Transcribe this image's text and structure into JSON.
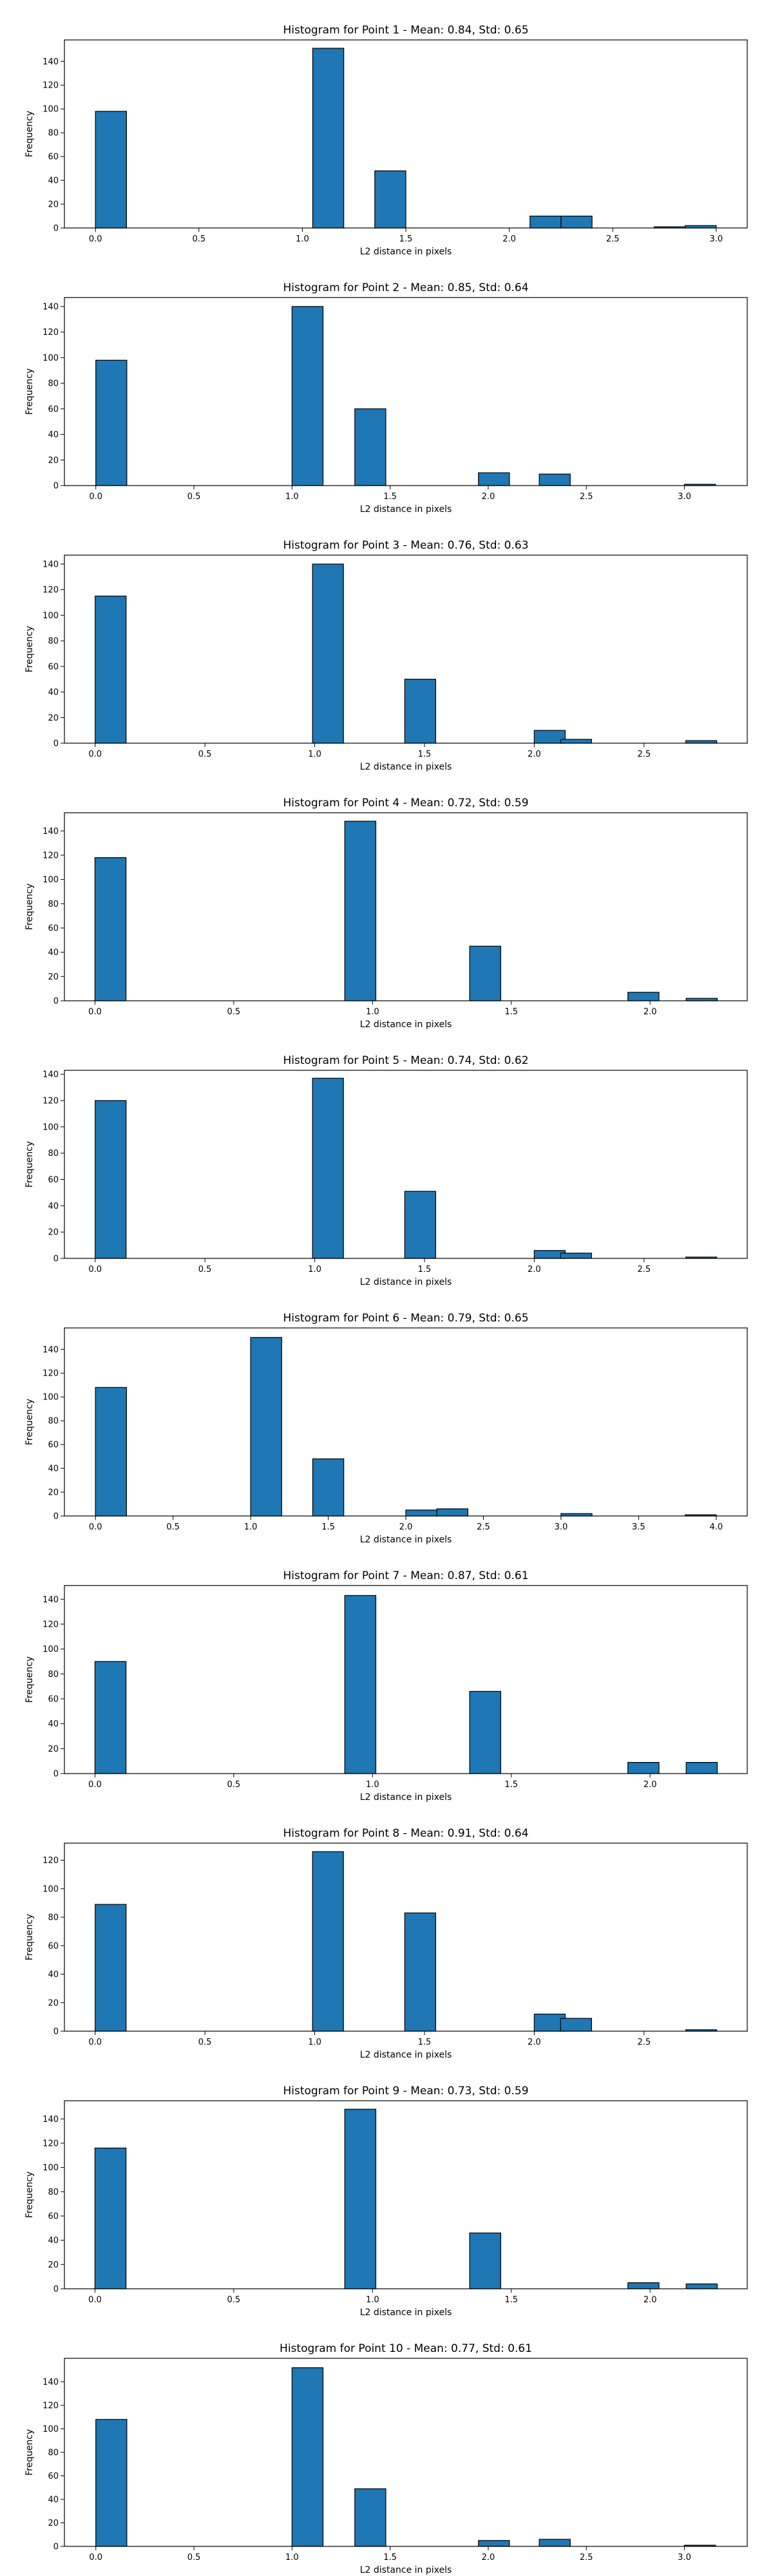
{
  "chart_data": [
    {
      "type": "bar",
      "title": "Histogram for Point 1 - Mean: 0.84, Std: 0.65",
      "xlabel": "L2 distance in pixels",
      "ylabel": "Frequency",
      "xlim": [
        -0.15,
        3.15
      ],
      "ylim": [
        0,
        158
      ],
      "xticks": [
        0,
        0.5,
        1.0,
        1.5,
        2.0,
        2.5,
        3.0
      ],
      "yticks": [
        0,
        20,
        40,
        60,
        80,
        100,
        120,
        140
      ],
      "xtick_labels": [
        "0.0",
        "0.5",
        "1.0",
        "1.5",
        "2.0",
        "2.5",
        "3.0"
      ],
      "ytick_labels": [
        "0",
        "20",
        "40",
        "60",
        "80",
        "100",
        "120",
        "140"
      ],
      "bin_width": 0.15,
      "bins": [
        [
          0.0,
          98
        ],
        [
          1.05,
          151
        ],
        [
          1.35,
          48
        ],
        [
          2.1,
          10
        ],
        [
          2.25,
          10
        ],
        [
          2.7,
          1
        ],
        [
          2.85,
          2
        ]
      ]
    },
    {
      "type": "bar",
      "title": "Histogram for Point 2 - Mean: 0.85, Std: 0.64",
      "xlabel": "L2 distance in pixels",
      "ylabel": "Frequency",
      "xlim": [
        -0.16,
        3.32
      ],
      "ylim": [
        0,
        147
      ],
      "xticks": [
        0,
        0.5,
        1.0,
        1.5,
        2.0,
        2.5,
        3.0
      ],
      "yticks": [
        0,
        20,
        40,
        60,
        80,
        100,
        120,
        140
      ],
      "xtick_labels": [
        "0.0",
        "0.5",
        "1.0",
        "1.5",
        "2.0",
        "2.5",
        "3.0"
      ],
      "ytick_labels": [
        "0",
        "20",
        "40",
        "60",
        "80",
        "100",
        "120",
        "140"
      ],
      "bin_width": 0.158,
      "bins": [
        [
          0.0,
          98
        ],
        [
          1.0,
          140
        ],
        [
          1.32,
          60
        ],
        [
          1.95,
          10
        ],
        [
          2.26,
          9
        ],
        [
          3.0,
          1
        ]
      ]
    },
    {
      "type": "bar",
      "title": "Histogram for Point 3 - Mean: 0.76, Std: 0.63",
      "xlabel": "L2 distance in pixels",
      "ylabel": "Frequency",
      "xlim": [
        -0.14,
        2.97
      ],
      "ylim": [
        0,
        147
      ],
      "xticks": [
        0,
        0.5,
        1.0,
        1.5,
        2.0,
        2.5
      ],
      "yticks": [
        0,
        20,
        40,
        60,
        80,
        100,
        120,
        140
      ],
      "xtick_labels": [
        "0.0",
        "0.5",
        "1.0",
        "1.5",
        "2.0",
        "2.5"
      ],
      "ytick_labels": [
        "0",
        "20",
        "40",
        "60",
        "80",
        "100",
        "120",
        "140"
      ],
      "bin_width": 0.141,
      "bins": [
        [
          0.0,
          115
        ],
        [
          0.99,
          140
        ],
        [
          1.41,
          50
        ],
        [
          2.0,
          10
        ],
        [
          2.12,
          3
        ],
        [
          2.69,
          2
        ]
      ]
    },
    {
      "type": "bar",
      "title": "Histogram for Point 4 - Mean: 0.72, Std: 0.59",
      "xlabel": "L2 distance in pixels",
      "ylabel": "Frequency",
      "xlim": [
        -0.11,
        2.35
      ],
      "ylim": [
        0,
        155
      ],
      "xticks": [
        0,
        0.5,
        1.0,
        1.5,
        2.0
      ],
      "yticks": [
        0,
        20,
        40,
        60,
        80,
        100,
        120,
        140
      ],
      "xtick_labels": [
        "0.0",
        "0.5",
        "1.0",
        "1.5",
        "2.0"
      ],
      "ytick_labels": [
        "0",
        "20",
        "40",
        "60",
        "80",
        "100",
        "120",
        "140"
      ],
      "bin_width": 0.112,
      "bins": [
        [
          0.0,
          118
        ],
        [
          0.9,
          148
        ],
        [
          1.35,
          45
        ],
        [
          1.92,
          7
        ],
        [
          2.13,
          2
        ]
      ]
    },
    {
      "type": "bar",
      "title": "Histogram for Point 5 - Mean: 0.74, Std: 0.62",
      "xlabel": "L2 distance in pixels",
      "ylabel": "Frequency",
      "xlim": [
        -0.14,
        2.97
      ],
      "ylim": [
        0,
        143
      ],
      "xticks": [
        0,
        0.5,
        1.0,
        1.5,
        2.0,
        2.5
      ],
      "yticks": [
        0,
        20,
        40,
        60,
        80,
        100,
        120,
        140
      ],
      "xtick_labels": [
        "0.0",
        "0.5",
        "1.0",
        "1.5",
        "2.0",
        "2.5"
      ],
      "ytick_labels": [
        "0",
        "20",
        "40",
        "60",
        "80",
        "100",
        "120",
        "140"
      ],
      "bin_width": 0.141,
      "bins": [
        [
          0.0,
          120
        ],
        [
          0.99,
          137
        ],
        [
          1.41,
          51
        ],
        [
          2.0,
          6
        ],
        [
          2.12,
          4
        ],
        [
          2.69,
          1
        ]
      ]
    },
    {
      "type": "bar",
      "title": "Histogram for Point 6 - Mean: 0.79, Std: 0.65",
      "xlabel": "L2 distance in pixels",
      "ylabel": "Frequency",
      "xlim": [
        -0.2,
        4.2
      ],
      "ylim": [
        0,
        158
      ],
      "xticks": [
        0,
        0.5,
        1.0,
        1.5,
        2.0,
        2.5,
        3.0,
        3.5,
        4.0
      ],
      "yticks": [
        0,
        20,
        40,
        60,
        80,
        100,
        120,
        140
      ],
      "xtick_labels": [
        "0.0",
        "0.5",
        "1.0",
        "1.5",
        "2.0",
        "2.5",
        "3.0",
        "3.5",
        "4.0"
      ],
      "ytick_labels": [
        "0",
        "20",
        "40",
        "60",
        "80",
        "100",
        "120",
        "140"
      ],
      "bin_width": 0.2,
      "bins": [
        [
          0.0,
          108
        ],
        [
          1.0,
          150
        ],
        [
          1.4,
          48
        ],
        [
          2.0,
          5
        ],
        [
          2.2,
          6
        ],
        [
          3.0,
          2
        ],
        [
          3.8,
          1
        ]
      ]
    },
    {
      "type": "bar",
      "title": "Histogram for Point 7 - Mean: 0.87, Std: 0.61",
      "xlabel": "L2 distance in pixels",
      "ylabel": "Frequency",
      "xlim": [
        -0.11,
        2.35
      ],
      "ylim": [
        0,
        151
      ],
      "xticks": [
        0,
        0.5,
        1.0,
        1.5,
        2.0
      ],
      "yticks": [
        0,
        20,
        40,
        60,
        80,
        100,
        120,
        140
      ],
      "xtick_labels": [
        "0.0",
        "0.5",
        "1.0",
        "1.5",
        "2.0"
      ],
      "ytick_labels": [
        "0",
        "20",
        "40",
        "60",
        "80",
        "100",
        "120",
        "140"
      ],
      "bin_width": 0.112,
      "bins": [
        [
          0.0,
          90
        ],
        [
          0.9,
          143
        ],
        [
          1.35,
          66
        ],
        [
          1.92,
          9
        ],
        [
          2.13,
          9
        ]
      ]
    },
    {
      "type": "bar",
      "title": "Histogram for Point 8 - Mean: 0.91, Std: 0.64",
      "xlabel": "L2 distance in pixels",
      "ylabel": "Frequency",
      "xlim": [
        -0.14,
        2.97
      ],
      "ylim": [
        0,
        132
      ],
      "xticks": [
        0,
        0.5,
        1.0,
        1.5,
        2.0,
        2.5
      ],
      "yticks": [
        0,
        20,
        40,
        60,
        80,
        100,
        120
      ],
      "xtick_labels": [
        "0.0",
        "0.5",
        "1.0",
        "1.5",
        "2.0",
        "2.5"
      ],
      "ytick_labels": [
        "0",
        "20",
        "40",
        "60",
        "80",
        "100",
        "120"
      ],
      "bin_width": 0.141,
      "bins": [
        [
          0.0,
          89
        ],
        [
          0.99,
          126
        ],
        [
          1.41,
          83
        ],
        [
          2.0,
          12
        ],
        [
          2.12,
          9
        ],
        [
          2.69,
          1
        ]
      ]
    },
    {
      "type": "bar",
      "title": "Histogram for Point 9 - Mean: 0.73, Std: 0.59",
      "xlabel": "L2 distance in pixels",
      "ylabel": "Frequency",
      "xlim": [
        -0.11,
        2.35
      ],
      "ylim": [
        0,
        155
      ],
      "xticks": [
        0,
        0.5,
        1.0,
        1.5,
        2.0
      ],
      "yticks": [
        0,
        20,
        40,
        60,
        80,
        100,
        120,
        140
      ],
      "xtick_labels": [
        "0.0",
        "0.5",
        "1.0",
        "1.5",
        "2.0"
      ],
      "ytick_labels": [
        "0",
        "20",
        "40",
        "60",
        "80",
        "100",
        "120",
        "140"
      ],
      "bin_width": 0.112,
      "bins": [
        [
          0.0,
          116
        ],
        [
          0.9,
          148
        ],
        [
          1.35,
          46
        ],
        [
          1.92,
          5
        ],
        [
          2.13,
          4
        ]
      ]
    },
    {
      "type": "bar",
      "title": "Histogram for Point 10 - Mean: 0.77, Std: 0.61",
      "xlabel": "L2 distance in pixels",
      "ylabel": "Frequency",
      "xlim": [
        -0.16,
        3.32
      ],
      "ylim": [
        0,
        160
      ],
      "xticks": [
        0,
        0.5,
        1.0,
        1.5,
        2.0,
        2.5,
        3.0
      ],
      "yticks": [
        0,
        20,
        40,
        60,
        80,
        100,
        120,
        140
      ],
      "xtick_labels": [
        "0.0",
        "0.5",
        "1.0",
        "1.5",
        "2.0",
        "2.5",
        "3.0"
      ],
      "ytick_labels": [
        "0",
        "20",
        "40",
        "60",
        "80",
        "100",
        "120",
        "140"
      ],
      "bin_width": 0.158,
      "bins": [
        [
          0.0,
          108
        ],
        [
          1.0,
          152
        ],
        [
          1.32,
          49
        ],
        [
          1.95,
          5
        ],
        [
          2.26,
          6
        ],
        [
          3.0,
          1
        ]
      ]
    }
  ],
  "colors": {
    "bar_fill": "#1f77b4",
    "bar_edge": "#000000",
    "axes": "#000000",
    "background": "#ffffff"
  }
}
